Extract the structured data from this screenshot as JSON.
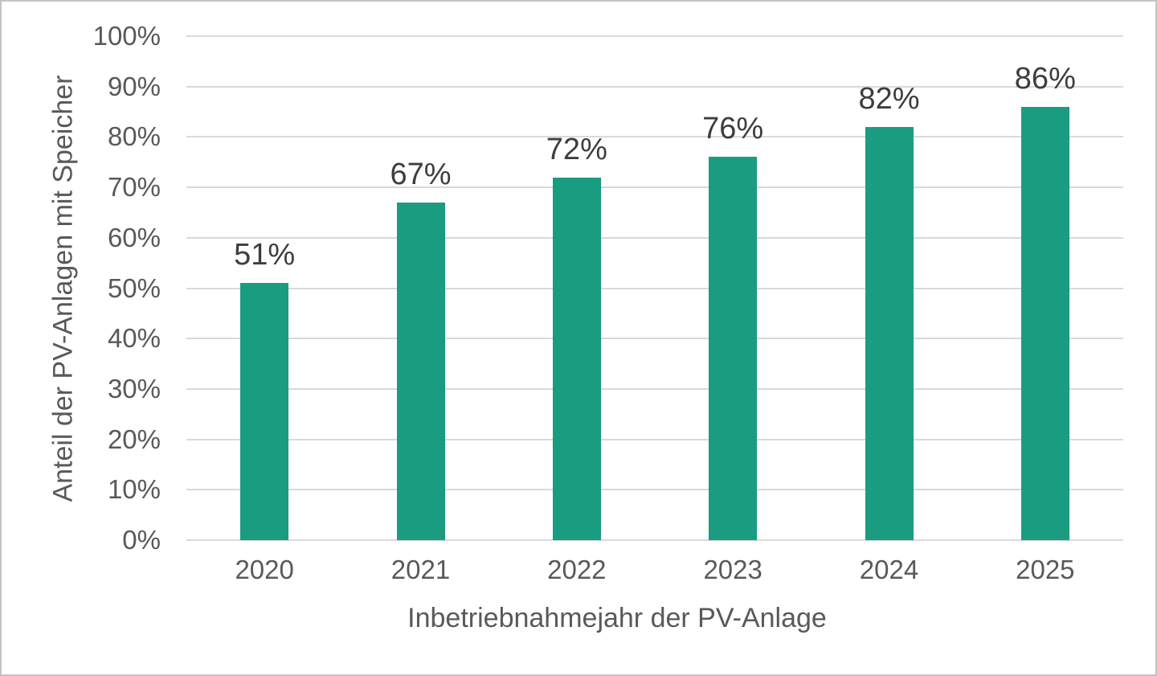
{
  "chart_data": {
    "type": "bar",
    "title": "",
    "categories": [
      "2020",
      "2021",
      "2022",
      "2023",
      "2024",
      "2025"
    ],
    "values": [
      51,
      67,
      72,
      76,
      82,
      86
    ],
    "value_labels": [
      "51%",
      "67%",
      "72%",
      "76%",
      "82%",
      "86%"
    ],
    "xlabel": "Inbetriebnahmejahr der PV-Anlage",
    "ylabel": "Anteil der PV-Anlagen mit Speicher",
    "ylim": [
      0,
      100
    ],
    "y_tick_step": 10,
    "y_tick_labels": [
      "0%",
      "10%",
      "20%",
      "30%",
      "40%",
      "50%",
      "60%",
      "70%",
      "80%",
      "90%",
      "100%"
    ],
    "grid": "horizontal",
    "legend": "none",
    "bar_color": "#1A9C81"
  },
  "colors": {
    "bar": "#1A9C81",
    "gridline": "#D9D9D9",
    "axis_tick_text": "#595959",
    "data_label_text": "#3D3D3D",
    "background": "#FFFFFF",
    "frame_border": "#C4C4C4"
  }
}
